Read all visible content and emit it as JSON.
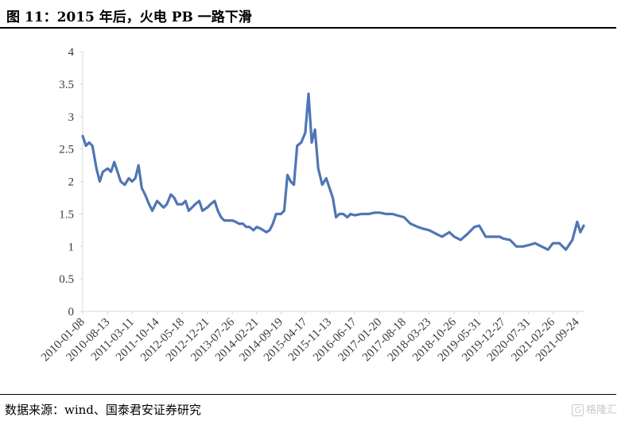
{
  "header": {
    "title": "图 11：2015 年后，火电 PB 一路下滑"
  },
  "footer": {
    "source": "数据来源：wind、国泰君安证券研究"
  },
  "watermark": {
    "icon": "G",
    "text": "格隆汇"
  },
  "colors": {
    "line": "#4F76B4",
    "axis": "#d9d9d9",
    "text": "#333333"
  },
  "chart_data": {
    "type": "line",
    "title": "",
    "xlabel": "",
    "ylabel": "",
    "ylim": [
      0,
      4
    ],
    "yticks": [
      "0",
      "0.5",
      "1",
      "1.5",
      "2",
      "2.5",
      "3",
      "3.5",
      "4"
    ],
    "xticks": [
      "2010-01-08",
      "2010-08-13",
      "2011-03-11",
      "2011-10-14",
      "2012-05-18",
      "2012-12-21",
      "2013-07-26",
      "2014-02-21",
      "2014-09-19",
      "2015-04-17",
      "2015-11-13",
      "2016-06-17",
      "2017-01-20",
      "2017-08-18",
      "2018-03-23",
      "2018-10-26",
      "2019-05-31",
      "2019-12-27",
      "2020-07-31",
      "2021-02-26",
      "2021-09-24"
    ],
    "grid": false,
    "legend": "none",
    "series": [
      {
        "name": "",
        "x": [
          "2010-01-08",
          "2010-02-05",
          "2010-03-05",
          "2010-04-02",
          "2010-05-07",
          "2010-06-04",
          "2010-07-02",
          "2010-08-13",
          "2010-09-10",
          "2010-10-08",
          "2010-11-05",
          "2010-12-03",
          "2011-01-07",
          "2011-02-11",
          "2011-03-11",
          "2011-04-08",
          "2011-05-06",
          "2011-06-03",
          "2011-07-01",
          "2011-08-05",
          "2011-09-02",
          "2011-10-14",
          "2011-11-11",
          "2011-12-09",
          "2012-01-06",
          "2012-02-10",
          "2012-03-09",
          "2012-04-06",
          "2012-05-18",
          "2012-06-15",
          "2012-07-13",
          "2012-08-10",
          "2012-09-07",
          "2012-10-12",
          "2012-11-09",
          "2012-12-21",
          "2013-01-18",
          "2013-02-22",
          "2013-03-22",
          "2013-04-19",
          "2013-05-17",
          "2013-06-14",
          "2013-07-26",
          "2013-08-23",
          "2013-09-20",
          "2013-10-25",
          "2013-11-22",
          "2013-12-20",
          "2014-01-24",
          "2014-02-21",
          "2014-03-21",
          "2014-04-18",
          "2014-05-16",
          "2014-06-13",
          "2014-07-11",
          "2014-08-08",
          "2014-09-19",
          "2014-10-17",
          "2014-11-14",
          "2014-12-12",
          "2015-01-09",
          "2015-02-06",
          "2015-03-13",
          "2015-04-17",
          "2015-05-15",
          "2015-06-12",
          "2015-07-10",
          "2015-08-07",
          "2015-09-11",
          "2015-10-16",
          "2015-11-13",
          "2015-12-11",
          "2016-01-08",
          "2016-02-05",
          "2016-03-11",
          "2016-04-15",
          "2016-05-13",
          "2016-06-17",
          "2016-08-12",
          "2016-10-14",
          "2016-12-09",
          "2017-01-20",
          "2017-03-17",
          "2017-05-12",
          "2017-06-16",
          "2017-08-18",
          "2017-10-13",
          "2017-12-15",
          "2018-01-19",
          "2018-03-23",
          "2018-05-18",
          "2018-07-13",
          "2018-09-14",
          "2018-10-26",
          "2018-12-21",
          "2019-02-22",
          "2019-04-19",
          "2019-05-31",
          "2019-07-26",
          "2019-09-27",
          "2019-11-22",
          "2019-12-27",
          "2020-02-21",
          "2020-04-17",
          "2020-06-12",
          "2020-07-31",
          "2020-09-25",
          "2020-11-20",
          "2021-01-15",
          "2021-02-26",
          "2021-04-23",
          "2021-06-18",
          "2021-08-13",
          "2021-09-24",
          "2021-10-22",
          "2021-11-19"
        ],
        "values": [
          2.7,
          2.55,
          2.6,
          2.55,
          2.2,
          2.0,
          2.15,
          2.2,
          2.15,
          2.3,
          2.15,
          2.0,
          1.95,
          2.05,
          2.0,
          2.05,
          2.25,
          1.9,
          1.8,
          1.65,
          1.55,
          1.7,
          1.65,
          1.6,
          1.65,
          1.8,
          1.75,
          1.65,
          1.65,
          1.7,
          1.55,
          1.6,
          1.65,
          1.7,
          1.55,
          1.6,
          1.65,
          1.7,
          1.55,
          1.45,
          1.4,
          1.4,
          1.4,
          1.38,
          1.35,
          1.35,
          1.3,
          1.3,
          1.25,
          1.3,
          1.28,
          1.25,
          1.22,
          1.25,
          1.35,
          1.5,
          1.5,
          1.55,
          2.1,
          2.0,
          1.95,
          2.55,
          2.6,
          2.75,
          3.35,
          2.6,
          2.8,
          2.2,
          1.95,
          2.05,
          1.9,
          1.75,
          1.45,
          1.5,
          1.5,
          1.45,
          1.5,
          1.48,
          1.5,
          1.5,
          1.52,
          1.52,
          1.5,
          1.5,
          1.48,
          1.45,
          1.35,
          1.3,
          1.28,
          1.25,
          1.2,
          1.15,
          1.22,
          1.15,
          1.1,
          1.2,
          1.3,
          1.32,
          1.15,
          1.15,
          1.15,
          1.12,
          1.1,
          1.0,
          1.0,
          1.02,
          1.05,
          1.0,
          0.95,
          1.05,
          1.05,
          0.95,
          1.1,
          1.38,
          1.22,
          1.32
        ]
      }
    ]
  }
}
